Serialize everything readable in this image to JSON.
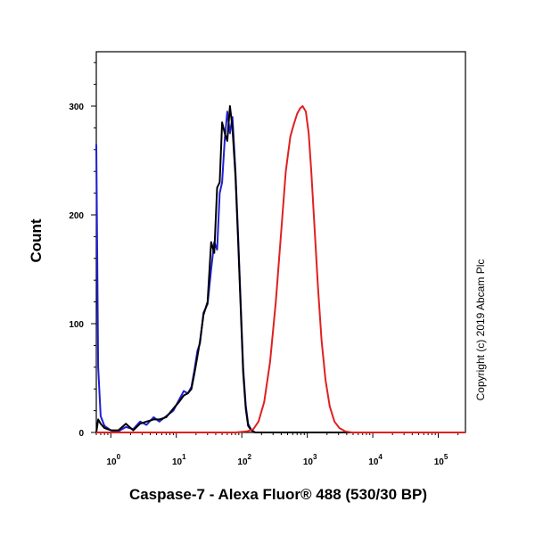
{
  "chart_data": {
    "type": "line",
    "xlabel": "Caspase-7 - Alexa Fluor® 488 (530/30 BP)",
    "ylabel": "Count",
    "x_scale": "log",
    "xlim": [
      0.6,
      260000
    ],
    "ylim": [
      0,
      350
    ],
    "x_ticks": [
      {
        "value": 1,
        "base": "10",
        "exp": "0"
      },
      {
        "value": 10,
        "base": "10",
        "exp": "1"
      },
      {
        "value": 100,
        "base": "10",
        "exp": "2"
      },
      {
        "value": 1000,
        "base": "10",
        "exp": "3"
      },
      {
        "value": 10000,
        "base": "10",
        "exp": "4"
      },
      {
        "value": 100000,
        "base": "10",
        "exp": "5"
      }
    ],
    "y_ticks": [
      0,
      100,
      200,
      300
    ],
    "series": [
      {
        "color": "#1f1fd6",
        "x": [
          0.6,
          0.64,
          0.7,
          0.8,
          1,
          1.3,
          1.7,
          2.2,
          2.8,
          3.5,
          4.5,
          5.5,
          7,
          9,
          11,
          13,
          15,
          17,
          19,
          21,
          23,
          26,
          30,
          34,
          38,
          42,
          46,
          50,
          55,
          60,
          66,
          72,
          80,
          88,
          96,
          105,
          115,
          125,
          140,
          160,
          200,
          400,
          260000
        ],
        "y": [
          265,
          60,
          15,
          6,
          2,
          1,
          5,
          3,
          10,
          7,
          14,
          10,
          15,
          20,
          30,
          38,
          36,
          42,
          58,
          75,
          82,
          110,
          118,
          150,
          175,
          168,
          220,
          230,
          270,
          295,
          275,
          290,
          240,
          180,
          120,
          60,
          25,
          8,
          2,
          0,
          0,
          0,
          0
        ]
      },
      {
        "color": "#000000",
        "x": [
          0.6,
          0.64,
          0.7,
          0.8,
          1,
          1.3,
          1.7,
          2.2,
          2.8,
          3.5,
          4.5,
          5.5,
          7,
          9,
          11,
          13,
          15,
          17,
          19,
          21,
          23,
          26,
          30,
          34,
          38,
          42,
          46,
          50,
          55,
          60,
          66,
          72,
          80,
          88,
          96,
          105,
          115,
          125,
          140,
          160,
          200,
          400,
          260000
        ],
        "y": [
          0,
          12,
          8,
          4,
          2,
          2,
          8,
          2,
          8,
          10,
          12,
          12,
          14,
          22,
          28,
          34,
          36,
          40,
          55,
          70,
          84,
          108,
          120,
          175,
          165,
          225,
          230,
          285,
          275,
          268,
          300,
          280,
          235,
          175,
          115,
          55,
          22,
          6,
          2,
          0,
          0,
          0,
          0
        ]
      },
      {
        "color": "#e02020",
        "x": [
          0.6,
          80,
          120,
          150,
          180,
          220,
          270,
          330,
          400,
          470,
          550,
          620,
          700,
          780,
          850,
          950,
          1050,
          1150,
          1300,
          1450,
          1650,
          1900,
          2200,
          2600,
          3100,
          3800,
          4800,
          6500,
          260000
        ],
        "y": [
          0,
          0,
          1,
          3,
          10,
          28,
          65,
          120,
          185,
          240,
          272,
          283,
          293,
          298,
          300,
          295,
          275,
          240,
          185,
          135,
          85,
          48,
          24,
          10,
          4,
          1,
          0,
          0,
          0
        ]
      }
    ]
  },
  "copyright": "Copyright (c) 2019 Abcam Plc"
}
